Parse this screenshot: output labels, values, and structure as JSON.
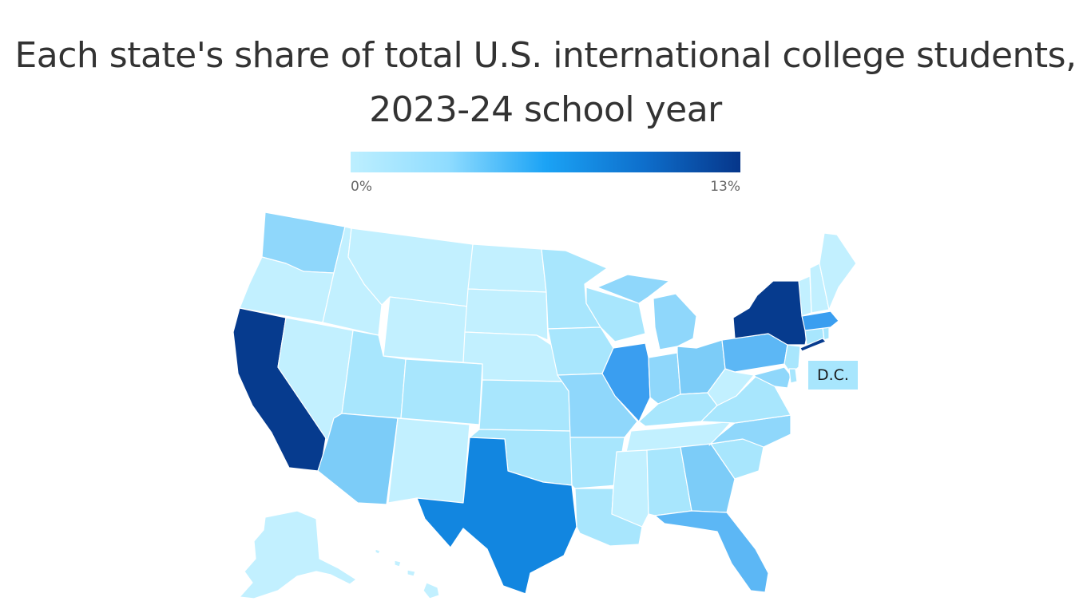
{
  "title": "Each state's share of total U.S. international college students, 2023-24 school year",
  "legend": {
    "min_label": "0%",
    "max_label": "13%",
    "stops": [
      "#bdefff",
      "#8fdcff",
      "#1ba3f5",
      "#0e6fcc",
      "#06368a"
    ]
  },
  "dc_label": "D.C.",
  "colors": {
    "c1": "#c2f0ff",
    "c2": "#a8e6fd",
    "c3": "#8fd7fb",
    "c4": "#7cccf8",
    "c5": "#5cb7f5",
    "c6": "#3a9ef0",
    "c7": "#1286e0",
    "c8": "#063b8e"
  }
}
